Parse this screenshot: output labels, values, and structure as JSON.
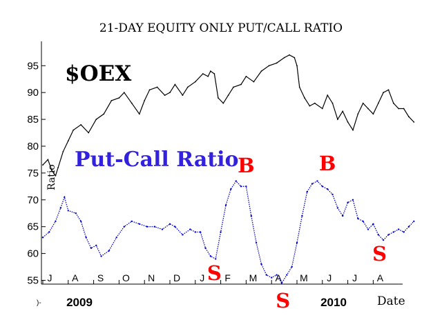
{
  "chart_data": {
    "type": "line",
    "title": "21-DAY EQUITY ONLY PUT/CALL RATIO",
    "ylabel": "Ratio",
    "xlabel": "Date",
    "ylim": [
      54,
      99
    ],
    "y_ticks": [
      55,
      60,
      65,
      70,
      75,
      80,
      85,
      90,
      95
    ],
    "month_labels": [
      "J",
      "A",
      "S",
      "O",
      "N",
      "D",
      "J",
      "F",
      "M",
      "A",
      "M",
      "J",
      "J",
      "A"
    ],
    "year_labels": [
      "2009",
      "2010"
    ],
    "annotations": {
      "oex_label": "$OEX",
      "ratio_label": "Put-Call Ratio",
      "signals": [
        {
          "text": "S",
          "x": 6.75
        },
        {
          "text": "B",
          "x": 8.0
        },
        {
          "text": "S",
          "x": 9.45
        },
        {
          "text": "B",
          "x": 11.2
        },
        {
          "text": "S",
          "x": 13.25
        }
      ]
    },
    "colors": {
      "oex": "#000000",
      "ratio": "#0000cc",
      "ratio_label": "#3322dd",
      "signal": "#ff0000"
    },
    "series": [
      {
        "name": "$OEX",
        "x": [
          0,
          0.2,
          0.35,
          0.5,
          0.6,
          0.8,
          1.0,
          1.2,
          1.5,
          1.8,
          2.1,
          2.4,
          2.7,
          3.0,
          3.2,
          3.5,
          3.8,
          4.0,
          4.2,
          4.5,
          4.8,
          5.0,
          5.2,
          5.5,
          5.7,
          6.0,
          6.3,
          6.5,
          6.6,
          6.75,
          6.9,
          7.1,
          7.3,
          7.5,
          7.8,
          8.0,
          8.3,
          8.6,
          8.9,
          9.2,
          9.5,
          9.7,
          9.9,
          10.0,
          10.1,
          10.3,
          10.5,
          10.7,
          11.0,
          11.2,
          11.4,
          11.6,
          11.8,
          12.0,
          12.2,
          12.4,
          12.6,
          12.8,
          13.0,
          13.2,
          13.4,
          13.6,
          13.8,
          14.0,
          14.2,
          14.4,
          14.6
        ],
        "values": [
          76.5,
          77.5,
          75.5,
          74.5,
          76,
          79,
          81,
          83,
          84,
          82.5,
          85,
          86,
          88.5,
          89,
          90,
          88,
          86,
          88.5,
          90.5,
          91,
          89.5,
          90,
          91.5,
          89.5,
          91,
          92,
          93.5,
          93,
          94,
          93.5,
          89,
          88,
          89.5,
          91,
          91.5,
          93,
          92,
          94,
          95,
          95.5,
          96.5,
          97,
          96.5,
          95,
          91,
          89,
          87.5,
          88,
          87,
          89.5,
          88,
          85,
          86.5,
          84.5,
          83,
          86,
          88,
          87,
          86,
          88,
          90,
          90.5,
          88,
          87,
          87,
          85.5,
          84.5
        ]
      },
      {
        "name": "Put-Call Ratio",
        "x": [
          0,
          0.25,
          0.5,
          0.7,
          0.85,
          1.0,
          1.3,
          1.5,
          1.7,
          1.9,
          2.1,
          2.3,
          2.6,
          2.9,
          3.2,
          3.5,
          3.8,
          4.1,
          4.4,
          4.7,
          5.0,
          5.2,
          5.5,
          5.8,
          6.0,
          6.2,
          6.4,
          6.6,
          6.8,
          7.0,
          7.2,
          7.4,
          7.6,
          7.8,
          8.0,
          8.2,
          8.4,
          8.6,
          8.8,
          9.0,
          9.2,
          9.4,
          9.6,
          9.8,
          10.0,
          10.2,
          10.4,
          10.6,
          10.8,
          11.0,
          11.2,
          11.4,
          11.6,
          11.8,
          12.0,
          12.2,
          12.4,
          12.6,
          12.8,
          13.0,
          13.2,
          13.4,
          13.6,
          13.8,
          14.0,
          14.2,
          14.4,
          14.6
        ],
        "values": [
          63,
          64,
          66,
          68.5,
          70.5,
          68,
          67.5,
          66,
          63,
          61,
          61.5,
          59.5,
          60.5,
          63,
          65,
          66,
          65.5,
          65,
          65,
          64.5,
          65.5,
          65,
          63.5,
          64.5,
          64,
          64,
          61,
          59.5,
          59,
          64,
          69,
          72,
          73.5,
          72.5,
          72.5,
          67,
          62,
          58,
          56,
          55.5,
          56,
          54.5,
          56,
          57.5,
          62,
          67,
          71.5,
          73,
          73.5,
          72.5,
          72,
          71,
          68.5,
          67,
          69.5,
          70,
          66.5,
          66,
          64.5,
          65.5,
          63.5,
          62.5,
          63.5,
          64,
          64.5,
          64,
          65,
          66
        ]
      }
    ]
  }
}
